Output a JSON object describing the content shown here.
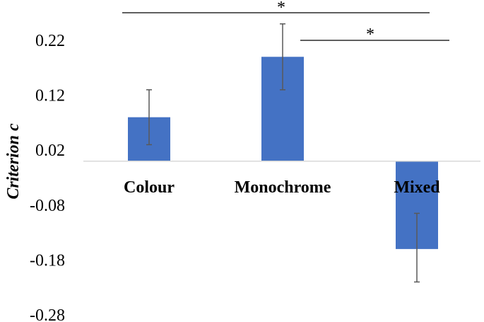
{
  "chart_data": {
    "type": "bar",
    "title": "",
    "xlabel": "",
    "ylabel": "Criterion c",
    "categories": [
      "Colour",
      "Monochrome",
      "Mixed"
    ],
    "values": [
      0.08,
      0.19,
      -0.16
    ],
    "error_bars": [
      {
        "low": 0.03,
        "high": 0.13
      },
      {
        "low": 0.13,
        "high": 0.25
      },
      {
        "low": -0.22,
        "high": -0.095
      }
    ],
    "ylim": [
      -0.28,
      0.25
    ],
    "yticks": [
      "0.22",
      "0.12",
      "0.02",
      "-0.08",
      "-0.18",
      "-0.28"
    ],
    "ytick_values": [
      0.22,
      0.12,
      0.02,
      -0.08,
      -0.18,
      -0.28
    ],
    "grid": false,
    "bar_color": "#4472c4",
    "error_bar_color": "#595959",
    "significance": [
      {
        "from": "Colour",
        "to": "Mixed",
        "label": "*"
      },
      {
        "from": "Monochrome",
        "to": "Mixed",
        "label": "*"
      }
    ]
  }
}
